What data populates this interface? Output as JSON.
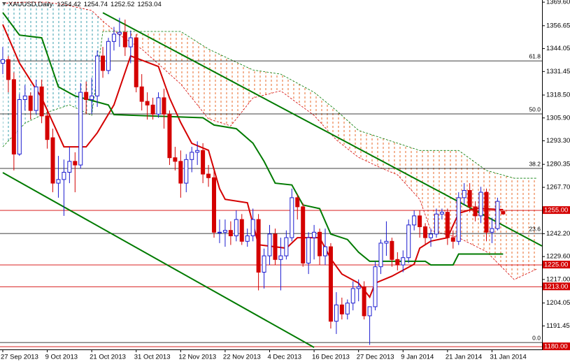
{
  "chart_data": {
    "type": "candlestick",
    "title": "XAUUSD,Daily",
    "candles": [
      [
        1336,
        1345,
        1330,
        1338
      ],
      [
        1338,
        1340,
        1320,
        1327
      ],
      [
        1327,
        1331,
        1277,
        1286
      ],
      [
        1286,
        1319,
        1285,
        1316
      ],
      [
        1316,
        1324,
        1310,
        1318
      ],
      [
        1318,
        1320,
        1305,
        1310
      ],
      [
        1310,
        1327,
        1308,
        1323
      ],
      [
        1323,
        1327,
        1303,
        1307
      ],
      [
        1307,
        1310,
        1289,
        1294
      ],
      [
        1295,
        1300,
        1265,
        1270
      ],
      [
        1270,
        1285,
        1262,
        1272
      ],
      [
        1272,
        1283,
        1252,
        1276
      ],
      [
        1276,
        1290,
        1270,
        1282
      ],
      [
        1282,
        1287,
        1265,
        1280
      ],
      [
        1280,
        1325,
        1278,
        1320
      ],
      [
        1320,
        1326,
        1308,
        1316
      ],
      [
        1316,
        1328,
        1308,
        1318
      ],
      [
        1318,
        1343,
        1312,
        1340
      ],
      [
        1340,
        1345,
        1328,
        1332
      ],
      [
        1332,
        1350,
        1330,
        1348
      ],
      [
        1348,
        1356,
        1343,
        1352
      ],
      [
        1352,
        1361,
        1345,
        1353
      ],
      [
        1353,
        1360,
        1340,
        1345
      ],
      [
        1345,
        1354,
        1336,
        1350
      ],
      [
        1350,
        1352,
        1320,
        1323
      ],
      [
        1323,
        1330,
        1310,
        1315
      ],
      [
        1315,
        1320,
        1305,
        1313
      ],
      [
        1313,
        1317,
        1305,
        1308
      ],
      [
        1308,
        1320,
        1306,
        1317
      ],
      [
        1317,
        1322,
        1300,
        1308
      ],
      [
        1308,
        1310,
        1280,
        1284
      ],
      [
        1284,
        1290,
        1277,
        1282
      ],
      [
        1282,
        1288,
        1262,
        1270
      ],
      [
        1270,
        1286,
        1265,
        1283
      ],
      [
        1283,
        1290,
        1276,
        1287
      ],
      [
        1287,
        1293,
        1280,
        1288
      ],
      [
        1288,
        1292,
        1270,
        1275
      ],
      [
        1275,
        1280,
        1268,
        1273
      ],
      [
        1273,
        1277,
        1240,
        1243
      ],
      [
        1243,
        1250,
        1237,
        1243
      ],
      [
        1243,
        1250,
        1235,
        1244
      ],
      [
        1244,
        1249,
        1236,
        1241
      ],
      [
        1241,
        1255,
        1238,
        1250
      ],
      [
        1250,
        1253,
        1236,
        1238
      ],
      [
        1238,
        1245,
        1235,
        1241
      ],
      [
        1241,
        1256,
        1238,
        1250
      ],
      [
        1250,
        1253,
        1211,
        1221
      ],
      [
        1221,
        1234,
        1212,
        1230
      ],
      [
        1230,
        1247,
        1225,
        1242
      ],
      [
        1242,
        1245,
        1225,
        1228
      ],
      [
        1228,
        1240,
        1211,
        1230
      ],
      [
        1230,
        1244,
        1228,
        1240
      ],
      [
        1240,
        1267,
        1238,
        1262
      ],
      [
        1262,
        1264,
        1250,
        1257
      ],
      [
        1257,
        1259,
        1224,
        1226
      ],
      [
        1226,
        1243,
        1220,
        1240
      ],
      [
        1240,
        1247,
        1228,
        1243
      ],
      [
        1243,
        1245,
        1225,
        1230
      ],
      [
        1230,
        1245,
        1225,
        1235
      ],
      [
        1235,
        1237,
        1190,
        1194
      ],
      [
        1194,
        1210,
        1187,
        1203
      ],
      [
        1203,
        1207,
        1195,
        1198
      ],
      [
        1198,
        1206,
        1195,
        1204
      ],
      [
        1204,
        1216,
        1200,
        1212
      ],
      [
        1212,
        1217,
        1205,
        1213
      ],
      [
        1213,
        1216,
        1195,
        1197
      ],
      [
        1197,
        1202,
        1181,
        1202
      ],
      [
        1202,
        1227,
        1200,
        1224
      ],
      [
        1224,
        1239,
        1220,
        1237
      ],
      [
        1237,
        1249,
        1230,
        1238
      ],
      [
        1238,
        1240,
        1224,
        1228
      ],
      [
        1228,
        1232,
        1222,
        1225
      ],
      [
        1225,
        1233,
        1221,
        1229
      ],
      [
        1229,
        1250,
        1226,
        1247
      ],
      [
        1247,
        1255,
        1244,
        1252
      ],
      [
        1252,
        1255,
        1240,
        1246
      ],
      [
        1246,
        1248,
        1236,
        1240
      ],
      [
        1240,
        1245,
        1235,
        1242
      ],
      [
        1242,
        1256,
        1240,
        1253
      ],
      [
        1253,
        1256,
        1250,
        1254
      ],
      [
        1254,
        1256,
        1236,
        1240
      ],
      [
        1240,
        1244,
        1234,
        1238
      ],
      [
        1238,
        1265,
        1236,
        1262
      ],
      [
        1262,
        1270,
        1258,
        1266
      ],
      [
        1266,
        1270,
        1254,
        1257
      ],
      [
        1257,
        1260,
        1249,
        1252
      ],
      [
        1252,
        1268,
        1248,
        1265
      ],
      [
        1265,
        1267,
        1238,
        1243
      ],
      [
        1243,
        1251,
        1237,
        1245
      ],
      [
        1245,
        1262,
        1244,
        1260
      ],
      [
        1254.42,
        1254.74,
        1252.52,
        1253.04
      ]
    ],
    "bull_color": "#1c1cd0",
    "bear_color": "#d40000",
    "xlim": [
      -0.5,
      97
    ],
    "xticks": [
      {
        "value": 0,
        "label": "27 Sep 2013"
      },
      {
        "value": 8,
        "label": "9 Oct 2013"
      },
      {
        "value": 16,
        "label": "21 Oct 2013"
      },
      {
        "value": 24,
        "label": "31 Oct 2013"
      },
      {
        "value": 32,
        "label": "12 Nov 2013"
      },
      {
        "value": 40,
        "label": "22 Nov 2013"
      },
      {
        "value": 48,
        "label": "4 Dec 2013"
      },
      {
        "value": 56,
        "label": "16 Dec 2013"
      },
      {
        "value": 64,
        "label": "27 Dec 2013"
      },
      {
        "value": 72,
        "label": "9 Jan 2014"
      },
      {
        "value": 80,
        "label": "21 Jan 2014"
      },
      {
        "value": 88,
        "label": "31 Jan 2014"
      }
    ],
    "ylim": [
      1178.5,
      1370.8
    ],
    "yticks": [
      {
        "value": 1369.6,
        "label": "1369.60"
      },
      1356.65,
      1344.05,
      1331.45,
      {
        "value": 1318.5,
        "label": "1318.50"
      },
      {
        "value": 1305.9,
        "label": "1305.90"
      },
      {
        "value": 1293.3,
        "label": "1293.30"
      },
      1280.35,
      {
        "value": 1267.7,
        "label": "1267.70"
      },
      {
        "value": 1242.2,
        "label": "1242.20"
      },
      {
        "value": 1229.6,
        "label": "1229.60"
      },
      {
        "value": 1217,
        "label": "1217.00"
      },
      1204.05,
      1191.45
    ],
    "lines": [
      {
        "color": "#d40000",
        "x": [
          0,
          3,
          7,
          11,
          15,
          17,
          20,
          23,
          28,
          30,
          32,
          34,
          37,
          39,
          40,
          44,
          46,
          51,
          53,
          57,
          59,
          61,
          64,
          66,
          67,
          70,
          74,
          75,
          77,
          80,
          82,
          85,
          90
        ],
        "values": [
          1357.3,
          1336.1,
          1316.9,
          1290,
          1290,
          1297.7,
          1313.1,
          1340,
          1334.2,
          1316.9,
          1303.4,
          1291.9,
          1288.1,
          1266.9,
          1261.1,
          1259.2,
          1236.1,
          1234.2,
          1240,
          1240,
          1228.4,
          1220,
          1215,
          1207.3,
          1215,
          1218.8,
          1225.4,
          1234.2,
          1238.1,
          1240,
          1253.4,
          1256.2,
          1255.4
        ]
      },
      {
        "color": "#007a00",
        "x": [
          0,
          3,
          7,
          10,
          13,
          19,
          20,
          36,
          38,
          42,
          45,
          47,
          49,
          52,
          54,
          57,
          59,
          62,
          64,
          66,
          76,
          77,
          81,
          82,
          90
        ],
        "values": [
          1363.9,
          1351.5,
          1350,
          1323,
          1318,
          1313,
          1307.7,
          1306,
          1302,
          1300,
          1292,
          1282,
          1270,
          1269,
          1258,
          1256,
          1242,
          1239,
          1232,
          1227,
          1227,
          1225,
          1225,
          1231,
          1231
        ]
      }
    ],
    "cloud": {
      "x": [
        0,
        4,
        8,
        12,
        16,
        18,
        21,
        25,
        32,
        37,
        41,
        45,
        50,
        56,
        60,
        64,
        68,
        71,
        75,
        77,
        82,
        87,
        92,
        96
      ],
      "span_a": [
        1369,
        1369.6,
        1369.6,
        1367.7,
        1365,
        1359.2,
        1351.5,
        1343.8,
        1324.6,
        1305.4,
        1301.5,
        1316.9,
        1320.8,
        1307.3,
        1293.8,
        1284.2,
        1278.4,
        1274.6,
        1261.1,
        1243.9,
        1240,
        1232.3,
        1216.9,
        1222.7
      ],
      "span_b": [
        1290,
        1303,
        1309,
        1313.1,
        1307.3,
        1353.5,
        1353.5,
        1353.5,
        1353.5,
        1343.8,
        1338,
        1332.3,
        1330,
        1320,
        1310,
        1299,
        1295,
        1292,
        1288,
        1288,
        1288,
        1277,
        1272.7,
        1272.7
      ],
      "span_a_color": "#d40000",
      "span_b_color": "#007a00",
      "bull_color": "#3a9fae",
      "bear_color": "#e8682a"
    },
    "trendlines": [
      {
        "color": "#007a00",
        "x": [
          18,
          97
        ],
        "values": [
          1363.8,
          1235.4
        ]
      },
      {
        "color": "#007a00",
        "x": [
          0,
          56
        ],
        "values": [
          1275.8,
          1179.6
        ]
      }
    ],
    "fib_levels": [
      {
        "label": "61.8",
        "value": 1337.3
      },
      {
        "label": "50.0",
        "value": 1308.1
      },
      {
        "label": "38.2",
        "value": 1278.1
      },
      {
        "label": "23.6",
        "value": 1242.3
      },
      {
        "label": "0.0",
        "value": 1182.3
      }
    ],
    "price_levels": [
      {
        "value": 1255,
        "label": "1255.00"
      },
      {
        "value": 1225,
        "label": "1225.00"
      },
      {
        "value": 1213,
        "label": "1213.00"
      },
      {
        "value": 1180,
        "label": "1180.00"
      }
    ],
    "level_color": "#d40000"
  }
}
